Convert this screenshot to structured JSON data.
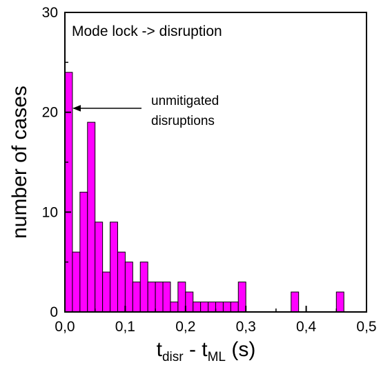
{
  "chart_data": {
    "type": "bar",
    "title": "Mode lock -> disruption",
    "xlabel": {
      "main1": "t",
      "sub1": "disr",
      "mid": " - t",
      "sub2": "ML",
      "end": " (s)"
    },
    "ylabel": "number of cases",
    "xlim": [
      0,
      0.5
    ],
    "ylim": [
      0,
      30
    ],
    "x_ticks": [
      "0,0",
      "0,1",
      "0,2",
      "0,3",
      "0,4",
      "0,5"
    ],
    "x_tick_values": [
      0,
      0.1,
      0.2,
      0.3,
      0.4,
      0.5
    ],
    "y_ticks": [
      "0",
      "10",
      "20",
      "30"
    ],
    "y_tick_values": [
      0,
      10,
      20,
      30
    ],
    "bin_width": 0.0125,
    "bin_starts": [
      0,
      0.0125,
      0.025,
      0.0375,
      0.05,
      0.0625,
      0.075,
      0.0875,
      0.1,
      0.1125,
      0.125,
      0.1375,
      0.15,
      0.1625,
      0.175,
      0.1875,
      0.2,
      0.2125,
      0.225,
      0.2375,
      0.25,
      0.2625,
      0.275,
      0.2875,
      0.3,
      0.3125,
      0.325,
      0.3375,
      0.35,
      0.3625,
      0.375,
      0.3875,
      0.4,
      0.4125,
      0.425,
      0.4375,
      0.45,
      0.4625,
      0.475
    ],
    "values": [
      24,
      6,
      12,
      19,
      9,
      4,
      9,
      6,
      5,
      3,
      5,
      3,
      3,
      3,
      1,
      3,
      2,
      1,
      1,
      1,
      1,
      1,
      1,
      3,
      0,
      0,
      0,
      0,
      0,
      0,
      2,
      0,
      0,
      0,
      0,
      0,
      2,
      0,
      0
    ],
    "bar_color": "#ff00ff",
    "annotation": {
      "line1": "unmitigated",
      "line2": "disruptions",
      "points_to_x": 0.005,
      "points_to_y": 20.4
    },
    "grid": false
  }
}
